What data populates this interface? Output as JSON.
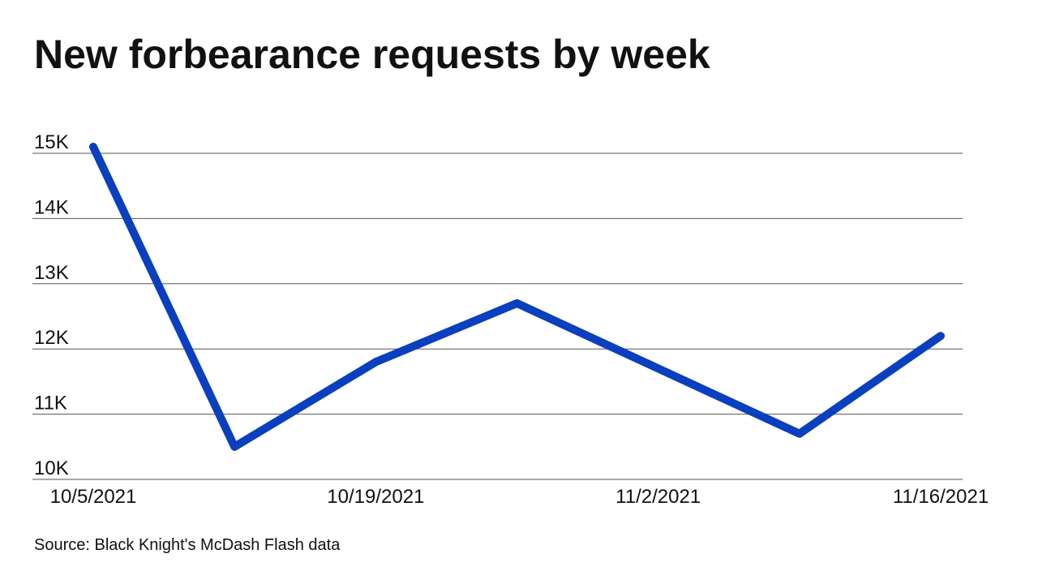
{
  "chart_data": {
    "type": "line",
    "title": "New forbearance requests by week",
    "source": "Source: Black Knight's McDash Flash data",
    "categories": [
      "10/5/2021",
      null,
      "10/19/2021",
      null,
      "11/2/2021",
      null,
      "11/16/2021"
    ],
    "series": [
      {
        "name": "New forbearance requests",
        "color": "#0a3fbf",
        "values": [
          15100,
          10500,
          11800,
          12700,
          11700,
          10700,
          12200
        ]
      }
    ],
    "ylim": [
      10000,
      15000
    ],
    "yticks": [
      {
        "value": 10000,
        "label": "10K"
      },
      {
        "value": 11000,
        "label": "11K"
      },
      {
        "value": 12000,
        "label": "12K"
      },
      {
        "value": 13000,
        "label": "13K"
      },
      {
        "value": 14000,
        "label": "14K"
      },
      {
        "value": 15000,
        "label": "15K"
      }
    ],
    "grid": true
  }
}
